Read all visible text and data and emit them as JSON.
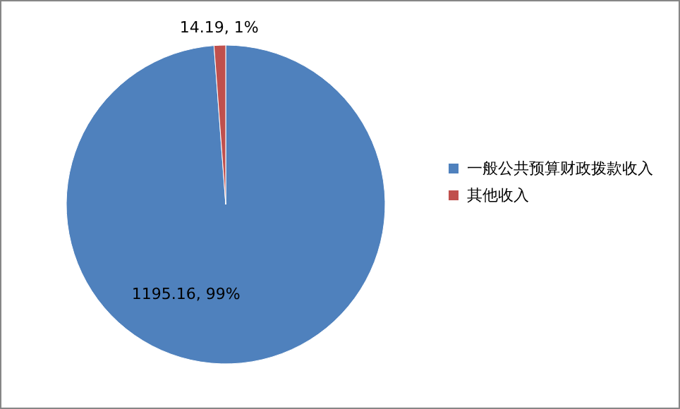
{
  "chart_data": {
    "type": "pie",
    "categories": [
      "一般公共预算财政拨款收入",
      "其他收入"
    ],
    "values": [
      1195.16,
      14.19
    ],
    "colors": [
      "#4f81bd",
      "#c0504d"
    ],
    "value_labels": [
      "1195.16, 99%",
      "14.19, 1%"
    ],
    "legend": "right"
  }
}
